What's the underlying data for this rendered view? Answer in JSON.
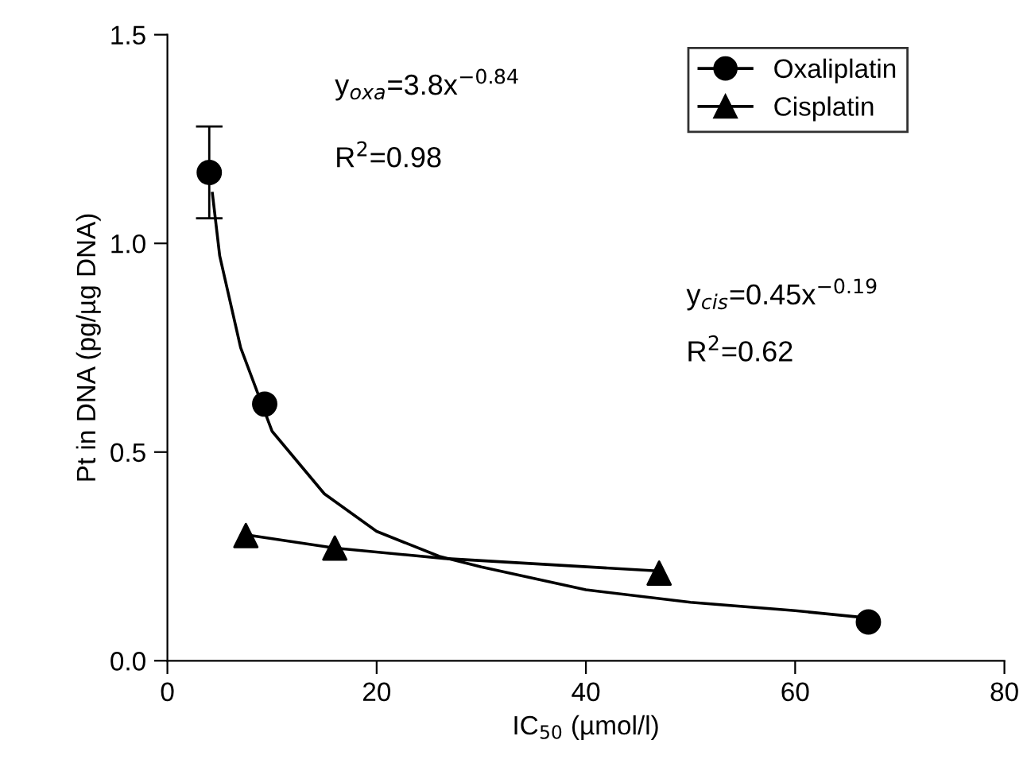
{
  "chart_data": {
    "type": "scatter",
    "xlabel": "IC$_{50}$ (µmol/l)",
    "ylabel": "Pt in DNA (pg/µg DNA)",
    "xlim": [
      0,
      80
    ],
    "xticks": [
      0,
      20,
      40,
      60,
      80
    ],
    "ylim": [
      0,
      1.5
    ],
    "yticks": [
      {
        "value": 0,
        "label": "0.0"
      },
      0.5,
      {
        "value": 1,
        "label": "1.0"
      },
      1.5
    ],
    "grid": false,
    "legend": "top right",
    "series": [
      {
        "name": "Oxaliplatin",
        "marker": "circle",
        "color": "#000000",
        "x": [
          4,
          9.3,
          67
        ],
        "values": [
          1.17,
          0.615,
          0.093
        ],
        "errors": [
          [
            1.06,
            1.28
          ],
          null,
          null
        ]
      },
      {
        "name": "Cisplatin",
        "marker": "triangle",
        "color": "#000000",
        "x": [
          7.5,
          16,
          47
        ],
        "values": [
          0.3,
          0.27,
          0.21
        ]
      },
      {
        "type": "line",
        "marker": "none",
        "color": "#000000",
        "x": [
          4.3,
          5,
          7,
          10,
          15,
          20,
          26,
          30,
          40,
          50,
          60,
          66
        ],
        "values": [
          1.12,
          0.97,
          0.75,
          0.55,
          0.4,
          0.31,
          0.25,
          0.225,
          0.17,
          0.14,
          0.12,
          0.105
        ]
      },
      {
        "type": "line",
        "marker": "none",
        "color": "#000000",
        "x": [
          8,
          16,
          26.5,
          47
        ],
        "values": [
          0.3,
          0.27,
          0.245,
          0.215
        ]
      }
    ],
    "annotations": [
      "y$_{oxa}$=3.8x$^{−0.84}$",
      "R$^{2}$=0.98",
      "y$_{cis}$=0.45x$^{−0.19}$",
      "R$^{2}$=0.62"
    ]
  }
}
